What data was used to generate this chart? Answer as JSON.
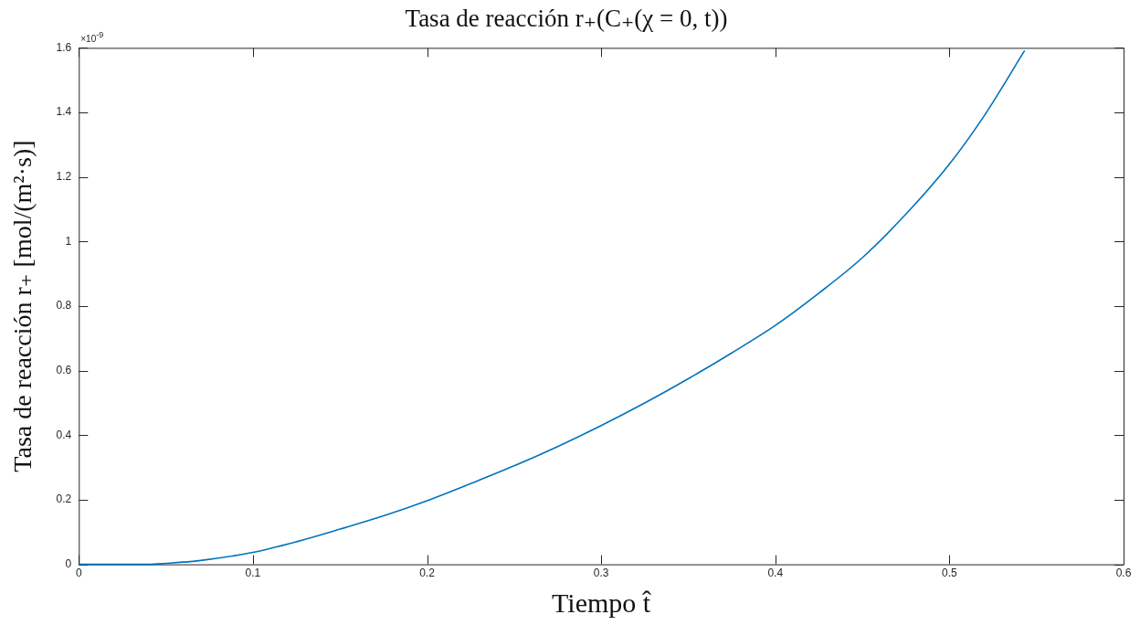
{
  "chart_data": {
    "type": "line",
    "title": "Tasa de reacción r₊(C₊(χ = 0, t))",
    "xlabel": "Tiempo t̂",
    "ylabel": "Tasa de reacción r₊ [mol/(m²·s)]",
    "annotations": [
      "×10$^{-9}$"
    ],
    "x": [
      0,
      0.02,
      0.04,
      0.05,
      0.07,
      0.1,
      0.125,
      0.15,
      0.175,
      0.2,
      0.225,
      0.25,
      0.275,
      0.3,
      0.325,
      0.35,
      0.375,
      0.4,
      0.425,
      0.45,
      0.475,
      0.5,
      0.52,
      0.543
    ],
    "series": [
      {
        "color": "#0072bd",
        "values": [
          0,
          0,
          0,
          0.003,
          0.012,
          0.037,
          0.07,
          0.109,
          0.15,
          0.197,
          0.25,
          0.305,
          0.365,
          0.43,
          0.5,
          0.575,
          0.655,
          0.74,
          0.84,
          0.95,
          1.085,
          1.24,
          1.39,
          1.59
        ]
      }
    ],
    "xlim": [
      0,
      0.6
    ],
    "xticks": [
      0,
      0.1,
      0.2,
      0.3,
      0.4,
      0.5,
      0.6
    ],
    "ylim": [
      0,
      1.6
    ],
    "yticks": [
      0,
      0.2,
      0.4,
      0.6,
      0.8,
      1,
      1.2,
      1.4,
      1.6
    ],
    "marker": "none",
    "line_style": "solid",
    "legend": false
  }
}
